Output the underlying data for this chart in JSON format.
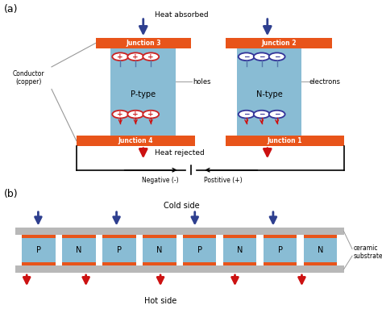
{
  "bg_color": "#ffffff",
  "orange_color": "#e8541a",
  "blue_color": "#89bcd4",
  "dark_blue_arrow": "#2e3f8f",
  "red_arrow": "#cc1111",
  "gray_color": "#b8b8b8",
  "text_color": "#000000",
  "label_a": "(a)",
  "label_b": "(b)",
  "junction_labels": [
    "Junction 1",
    "Junction 2",
    "Junction 3",
    "Junction 4"
  ],
  "ptype_label": "P-type",
  "ntype_label": "N-type",
  "holes_label": "holes",
  "electrons_label": "electrons",
  "conductor_label": "Conductor\n(copper)",
  "heat_absorbed": "Heat absorbed",
  "heat_rejected": "Heat rejected",
  "negative_label": "Negative (-)",
  "positive_label": "Postitive (+)",
  "cold_side": "Cold side",
  "hot_side": "Hot side",
  "ceramic_label": "ceramic\nsubstrate",
  "pn_labels": [
    "P",
    "N",
    "P",
    "N",
    "P",
    "N",
    "P",
    "N"
  ]
}
